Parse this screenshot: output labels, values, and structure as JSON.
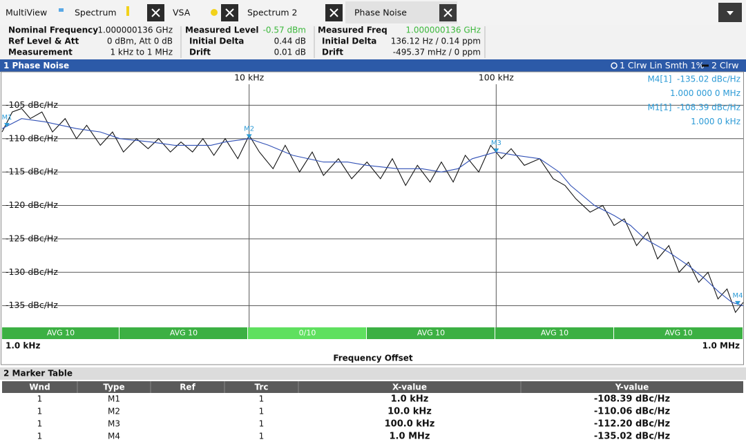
{
  "tabs": [
    "MultiView",
    "Spectrum",
    "VSA",
    "Spectrum 2",
    "Phase Noise"
  ],
  "info": [
    [
      [
        "Nominal Frequency",
        "1.000000136 GHz"
      ],
      [
        "Ref Level & Att",
        "0 dBm, Att 0 dB"
      ],
      [
        "Measurement",
        "1 kHz to 1 MHz"
      ]
    ],
    [
      [
        "Measured Level",
        "-0.57 dBm"
      ],
      [
        "Initial Delta",
        "0.44 dB"
      ],
      [
        "Drift",
        "0.01 dB"
      ]
    ],
    [
      [
        "Measured Freq",
        "1.000000136 GHz"
      ],
      [
        "Initial Delta",
        "136.12 Hz / 0.14 ppm"
      ],
      [
        "Drift",
        "-495.37 mHz / 0 ppm"
      ]
    ]
  ],
  "window_title": "1 Phase Noise",
  "chart_data": {
    "type": "line",
    "x_label": "Frequency Offset",
    "log_x": true,
    "grid": true,
    "xlim": [
      1000,
      1000000
    ],
    "xlim_labels": [
      "1.0 kHz",
      "1.0 MHz"
    ],
    "xticks": [
      {
        "value": 10000,
        "label": "10 kHz"
      },
      {
        "value": 100000,
        "label": "100 kHz"
      }
    ],
    "ylim": [
      -140,
      -100
    ],
    "yticks": [
      {
        "value": -105,
        "label": "-105 dBc/Hz"
      },
      {
        "value": -110,
        "label": "-110 dBc/Hz"
      },
      {
        "value": -115,
        "label": "-115 dBc/Hz"
      },
      {
        "value": -120,
        "label": "-120 dBc/Hz"
      },
      {
        "value": -125,
        "label": "-125 dBc/Hz"
      },
      {
        "value": -130,
        "label": "-130 dBc/Hz"
      },
      {
        "value": -135,
        "label": "-135 dBc/Hz"
      }
    ],
    "series": [
      {
        "name": "1 Clrw Lin Smth 1%",
        "color": "#2f4fb5",
        "x": [
          1000,
          1200,
          1500,
          2000,
          2500,
          3000,
          4000,
          5000,
          6000,
          7000,
          8000,
          10000,
          12000,
          15000,
          20000,
          25000,
          30000,
          40000,
          50000,
          60000,
          70000,
          80000,
          100000,
          120000,
          150000,
          180000,
          200000,
          250000,
          300000,
          350000,
          400000,
          500000,
          600000,
          700000,
          800000,
          900000,
          1000000
        ],
        "values": [
          -108.5,
          -107,
          -107.5,
          -108.5,
          -109,
          -110,
          -110.5,
          -111,
          -111,
          -111,
          -110.5,
          -110,
          -111,
          -112.5,
          -113.5,
          -113.5,
          -114,
          -114.5,
          -114.5,
          -115,
          -114.5,
          -113,
          -112,
          -112.5,
          -113,
          -115,
          -117,
          -120,
          -121.5,
          -123,
          -125,
          -127,
          -129,
          -131,
          -133,
          -134.5,
          -135
        ]
      },
      {
        "name": "2 Clrw",
        "color": "#111111",
        "x": [
          1000,
          1100,
          1200,
          1300,
          1450,
          1600,
          1800,
          2000,
          2200,
          2500,
          2800,
          3100,
          3500,
          3900,
          4300,
          4800,
          5300,
          5900,
          6500,
          7200,
          8000,
          9000,
          10000,
          11000,
          12500,
          14000,
          16000,
          18000,
          20000,
          23000,
          26000,
          30000,
          34000,
          38000,
          43000,
          48000,
          54000,
          60000,
          67000,
          75000,
          85000,
          95000,
          105000,
          115000,
          130000,
          150000,
          170000,
          190000,
          210000,
          240000,
          270000,
          300000,
          330000,
          370000,
          410000,
          450000,
          500000,
          550000,
          600000,
          660000,
          720000,
          790000,
          860000,
          930000,
          1000000
        ],
        "values": [
          -109,
          -106,
          -105.5,
          -107,
          -106,
          -109,
          -107,
          -110,
          -108,
          -111,
          -109,
          -112,
          -110,
          -111.5,
          -110,
          -112,
          -110.5,
          -112,
          -110,
          -112.5,
          -110,
          -113,
          -109.5,
          -112,
          -114.5,
          -111,
          -115,
          -112,
          -115.5,
          -113,
          -116,
          -113.5,
          -116,
          -113,
          -117,
          -114,
          -116.5,
          -113.5,
          -116.5,
          -112.5,
          -115,
          -111,
          -113,
          -111.5,
          -114,
          -113,
          -116,
          -117,
          -119,
          -121,
          -120,
          -123,
          -122,
          -126,
          -124,
          -128,
          -126,
          -130,
          -128.5,
          -131.5,
          -130,
          -134,
          -132.5,
          -136,
          -134.5
        ]
      }
    ],
    "markers": [
      {
        "name": "M1",
        "x": 1000,
        "y": -108.39
      },
      {
        "name": "M2",
        "x": 10000,
        "y": -110.06
      },
      {
        "name": "M3",
        "x": 100000,
        "y": -112.2
      },
      {
        "name": "M4",
        "x": 1000000,
        "y": -135.02
      }
    ],
    "marker_readouts": [
      "M4[1]  -135.02 dBc/Hz",
      "1.000 000 0 MHz",
      "M1[1]  -108.39 dBc/Hz",
      "1.000 0 kHz"
    ],
    "avg_bar": [
      "AVG 10",
      "AVG 10",
      "0/10",
      "AVG 10",
      "AVG 10",
      "AVG 10"
    ]
  },
  "marker_table": {
    "title": "2 Marker Table",
    "columns": [
      "Wnd",
      "Type",
      "Ref",
      "Trc",
      "X-value",
      "Y-value"
    ],
    "rows": [
      [
        "1",
        "M1",
        null,
        "1",
        "1.0 kHz",
        "-108.39 dBc/Hz"
      ],
      [
        "1",
        "M2",
        null,
        "1",
        "10.0 kHz",
        "-110.06 dBc/Hz"
      ],
      [
        "1",
        "M3",
        null,
        "1",
        "100.0 kHz",
        "-112.20 dBc/Hz"
      ],
      [
        "1",
        "M4",
        null,
        "1",
        "1.0 MHz",
        "-135.02 dBc/Hz"
      ]
    ]
  }
}
